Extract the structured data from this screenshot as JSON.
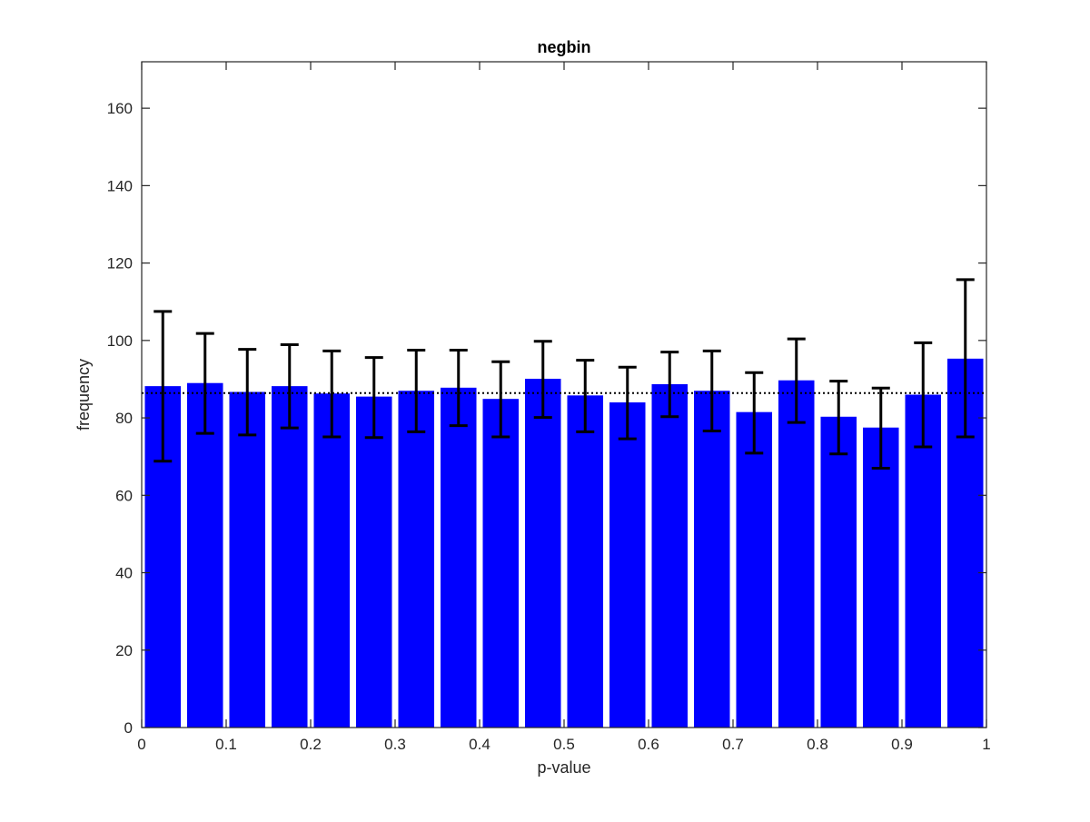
{
  "chart_data": {
    "type": "bar",
    "title": "negbin",
    "xlabel": "p-value",
    "ylabel": "frequency",
    "xlim": [
      0,
      1
    ],
    "ylim": [
      0,
      172
    ],
    "xticks": [
      "0",
      "0.1",
      "0.2",
      "0.3",
      "0.4",
      "0.5",
      "0.6",
      "0.7",
      "0.8",
      "0.9",
      "1"
    ],
    "yticks": [
      "0",
      "20",
      "40",
      "60",
      "80",
      "100",
      "120",
      "140",
      "160"
    ],
    "bin_width": 0.05,
    "bin_centers": [
      0.025,
      0.075,
      0.125,
      0.175,
      0.225,
      0.275,
      0.325,
      0.375,
      0.425,
      0.475,
      0.525,
      0.575,
      0.625,
      0.675,
      0.725,
      0.775,
      0.825,
      0.875,
      0.925,
      0.975
    ],
    "values": [
      88.2,
      89.0,
      86.7,
      88.2,
      86.3,
      85.5,
      87.0,
      87.8,
      84.9,
      90.1,
      85.8,
      84.0,
      88.7,
      87.0,
      81.5,
      89.7,
      80.3,
      77.5,
      86.0,
      95.3
    ],
    "error_low": [
      68.8,
      76.0,
      75.6,
      77.4,
      75.1,
      74.9,
      76.4,
      78.0,
      75.1,
      80.1,
      76.4,
      74.6,
      80.3,
      76.6,
      70.9,
      78.8,
      70.7,
      67.0,
      72.5,
      75.1
    ],
    "error_high": [
      107.5,
      101.8,
      97.7,
      98.9,
      97.3,
      95.6,
      97.5,
      97.5,
      94.5,
      99.8,
      94.9,
      93.1,
      97.0,
      97.3,
      91.7,
      100.4,
      89.5,
      87.7,
      99.4,
      115.7
    ],
    "reference_line": 86.4,
    "bar_color": "#0000ff",
    "error_color": "#000000",
    "grid": false
  }
}
